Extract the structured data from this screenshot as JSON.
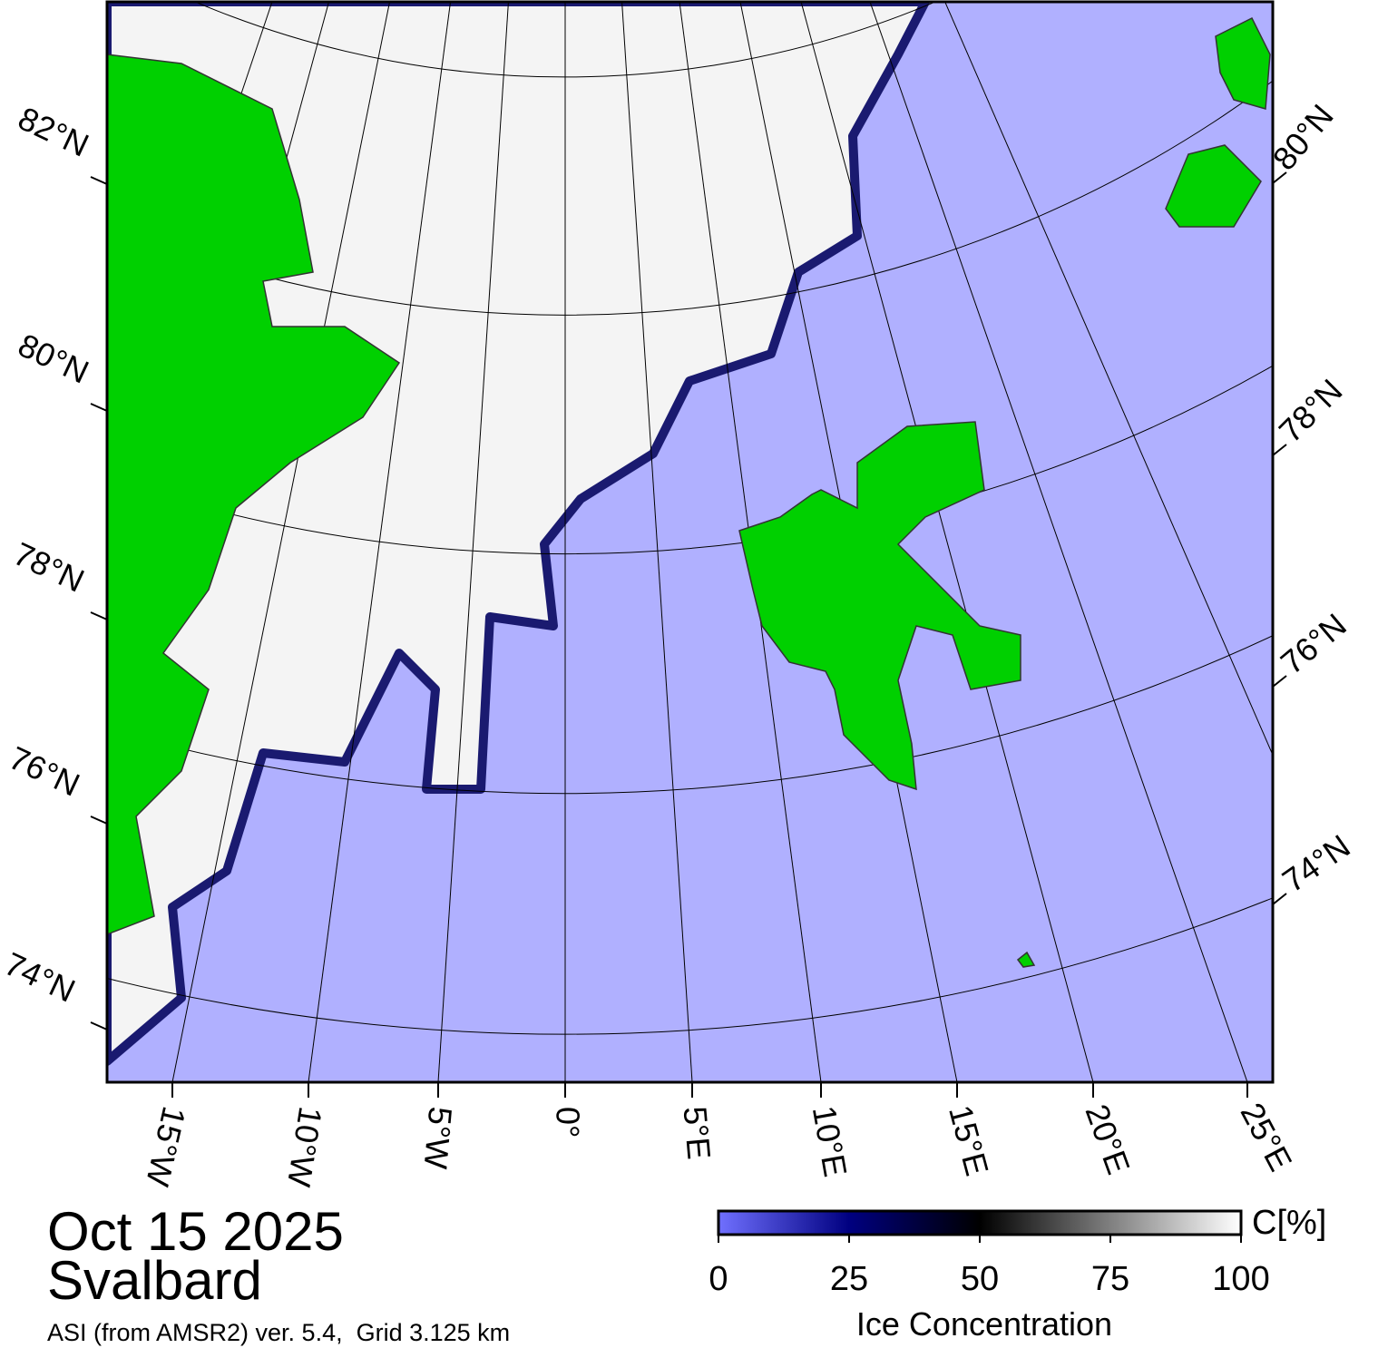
{
  "map": {
    "title": "Oct 15 2025",
    "region": "Svalbard",
    "subtitle": "ASI (from AMSR2) ver. 5.4,  Grid 3.125 km",
    "latitude_labels_left": [
      "82°N",
      "80°N",
      "78°N",
      "76°N",
      "74°N"
    ],
    "latitude_labels_right": [
      "80°N",
      "78°N",
      "76°N",
      "74°N"
    ],
    "longitude_labels": [
      "15°W",
      "10°W",
      "5°W",
      "0°",
      "5°E",
      "10°E",
      "15°E",
      "20°E",
      "25°E"
    ]
  },
  "colorbar": {
    "label": "Ice Concentration",
    "unit": "C[%]",
    "lim": [
      0,
      100
    ],
    "ticks": [
      0,
      25,
      50,
      75,
      100
    ]
  }
}
